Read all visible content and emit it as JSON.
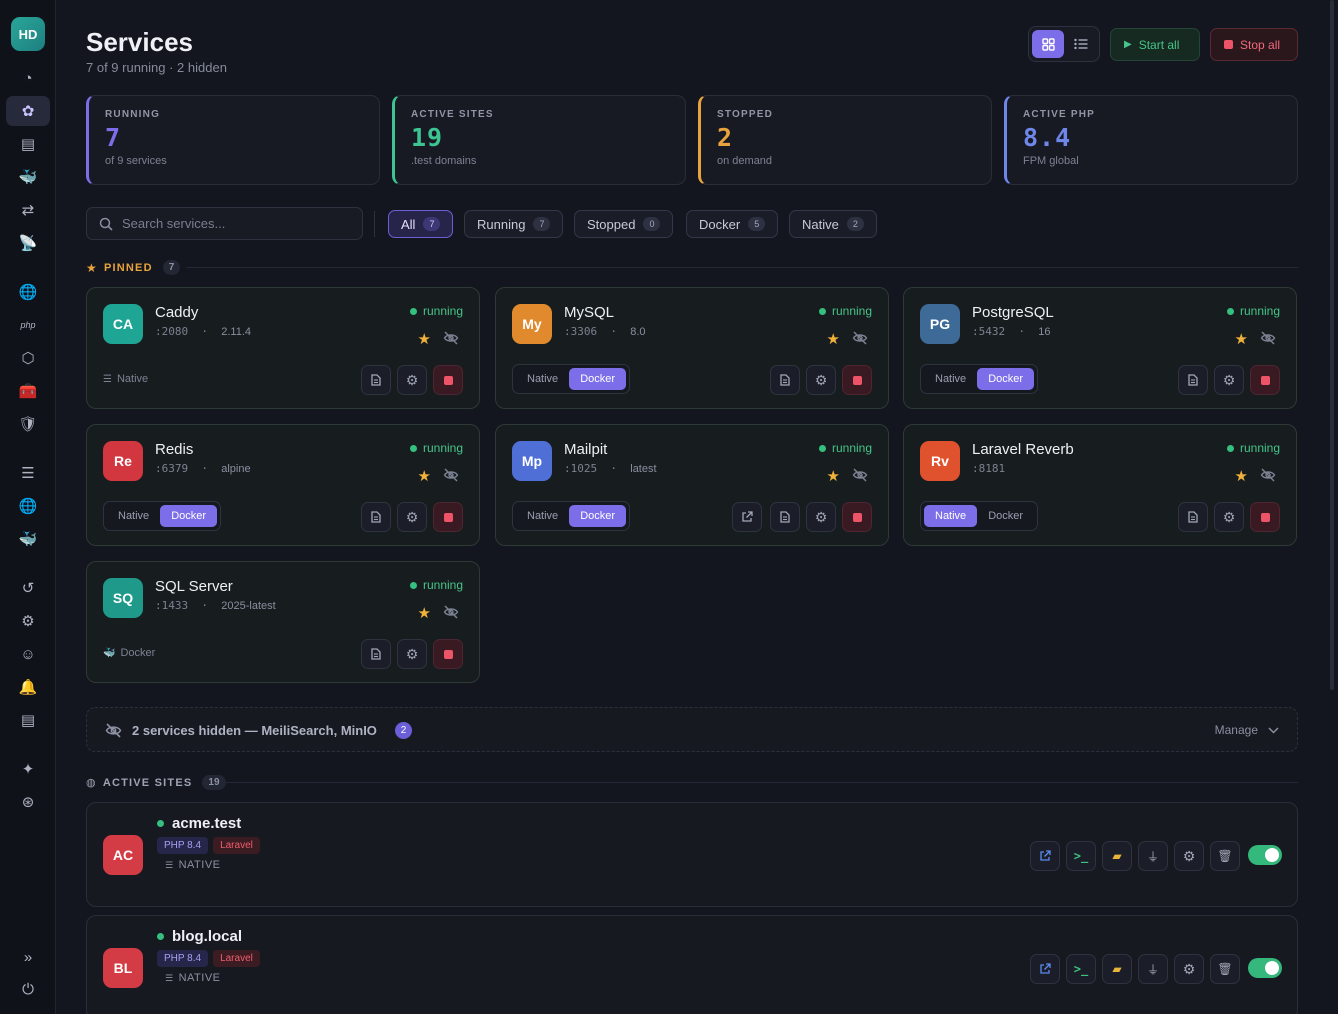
{
  "user": {
    "initials": "HD"
  },
  "sidebar": {
    "items": [
      {
        "name": "dashboard-icon",
        "glyph": "◔"
      },
      {
        "name": "services-icon",
        "glyph": "✿",
        "active": true
      },
      {
        "name": "storage-icon",
        "glyph": "▤"
      },
      {
        "name": "docker-icon",
        "glyph": "🐳"
      },
      {
        "name": "proxy-icon",
        "glyph": "⇄"
      },
      {
        "name": "broadcast-icon",
        "glyph": "📡"
      },
      {
        "name": "globe-icon",
        "glyph": "🌐"
      },
      {
        "name": "php-icon",
        "glyph": "php"
      },
      {
        "name": "nodejs-icon",
        "glyph": "⬡"
      },
      {
        "name": "toolbox-icon",
        "glyph": "🧰"
      },
      {
        "name": "shield-icon",
        "glyph": "🛡"
      },
      {
        "name": "server-icon",
        "glyph": "☰"
      },
      {
        "name": "network-icon",
        "glyph": "🌐"
      },
      {
        "name": "container-icon",
        "glyph": "🐳"
      },
      {
        "name": "history-icon",
        "glyph": "↺"
      },
      {
        "name": "gear-icon",
        "glyph": "⚙"
      },
      {
        "name": "robot-icon",
        "glyph": "☺"
      },
      {
        "name": "bell-icon",
        "glyph": "🔔"
      },
      {
        "name": "logs-icon",
        "glyph": "▤"
      },
      {
        "name": "handshake-icon",
        "glyph": "✦"
      },
      {
        "name": "lifebuoy-icon",
        "glyph": "⊛"
      },
      {
        "name": "expand-icon",
        "glyph": "»"
      },
      {
        "name": "power-icon",
        "glyph": "⏻"
      }
    ]
  },
  "header": {
    "title": "Services",
    "subtitle": "7 of 9 running · 2 hidden",
    "start_all": "Start all",
    "stop_all": "Stop all"
  },
  "stats": [
    {
      "label": "RUNNING",
      "value": "7",
      "note": "of 9 services",
      "color": "#7b6ee8"
    },
    {
      "label": "ACTIVE SITES",
      "value": "19",
      "note": ".test domains",
      "color": "#3cc492"
    },
    {
      "label": "STOPPED",
      "value": "2",
      "note": "on demand",
      "color": "#e8a33d"
    },
    {
      "label": "ACTIVE PHP",
      "value": "8.4",
      "note": "FPM global",
      "color": "#6f86ea"
    }
  ],
  "search": {
    "placeholder": "Search services..."
  },
  "filters": [
    {
      "label": "All",
      "count": "7"
    },
    {
      "label": "Running",
      "count": "7"
    },
    {
      "label": "Stopped",
      "count": "0"
    },
    {
      "label": "Docker",
      "count": "5"
    },
    {
      "label": "Native",
      "count": "2"
    }
  ],
  "pinned": {
    "label": "PINNED",
    "count": "7"
  },
  "engine_labels": {
    "native": "Native",
    "docker": "Docker"
  },
  "services": [
    {
      "initials": "CA",
      "name": "Caddy",
      "port": ":2080",
      "version": "2.11.4",
      "status": "running",
      "engine": "Native",
      "engines": null,
      "color": "#1fa594"
    },
    {
      "initials": "My",
      "name": "MySQL",
      "port": ":3306",
      "version": "8.0",
      "status": "running",
      "engines": "Docker",
      "color": "#e18a2d"
    },
    {
      "initials": "PG",
      "name": "PostgreSQL",
      "port": ":5432",
      "version": "16",
      "status": "running",
      "engines": "Docker",
      "color": "#3e6a98"
    },
    {
      "initials": "Re",
      "name": "Redis",
      "port": ":6379",
      "version": "alpine",
      "status": "running",
      "engines": "Docker",
      "color": "#d2363e"
    },
    {
      "initials": "Mp",
      "name": "Mailpit",
      "port": ":1025",
      "version": "latest",
      "status": "running",
      "engines": "Docker",
      "color": "#4f6fd6"
    },
    {
      "initials": "Rv",
      "name": "Laravel Reverb",
      "port": ":8181",
      "version": "",
      "status": "running",
      "engines": "Native",
      "color": "#e0512e"
    },
    {
      "initials": "SQ",
      "name": "SQL Server",
      "port": ":1433",
      "version": "2025-latest",
      "status": "running",
      "engine": "Docker",
      "engines": null,
      "color": "#1f9a8a"
    }
  ],
  "hidden": {
    "text": "2 services hidden — MeiliSearch, MinIO",
    "count": "2",
    "manage": "Manage"
  },
  "active_sites": {
    "label": "ACTIVE SITES",
    "count": "19"
  },
  "sites": [
    {
      "initials": "AC",
      "name": "acme.test",
      "php": "PHP 8.4",
      "framework": "Laravel",
      "type": "NATIVE"
    },
    {
      "initials": "BL",
      "name": "blog.local",
      "php": "PHP 8.4",
      "framework": "Laravel",
      "type": "NATIVE"
    }
  ]
}
